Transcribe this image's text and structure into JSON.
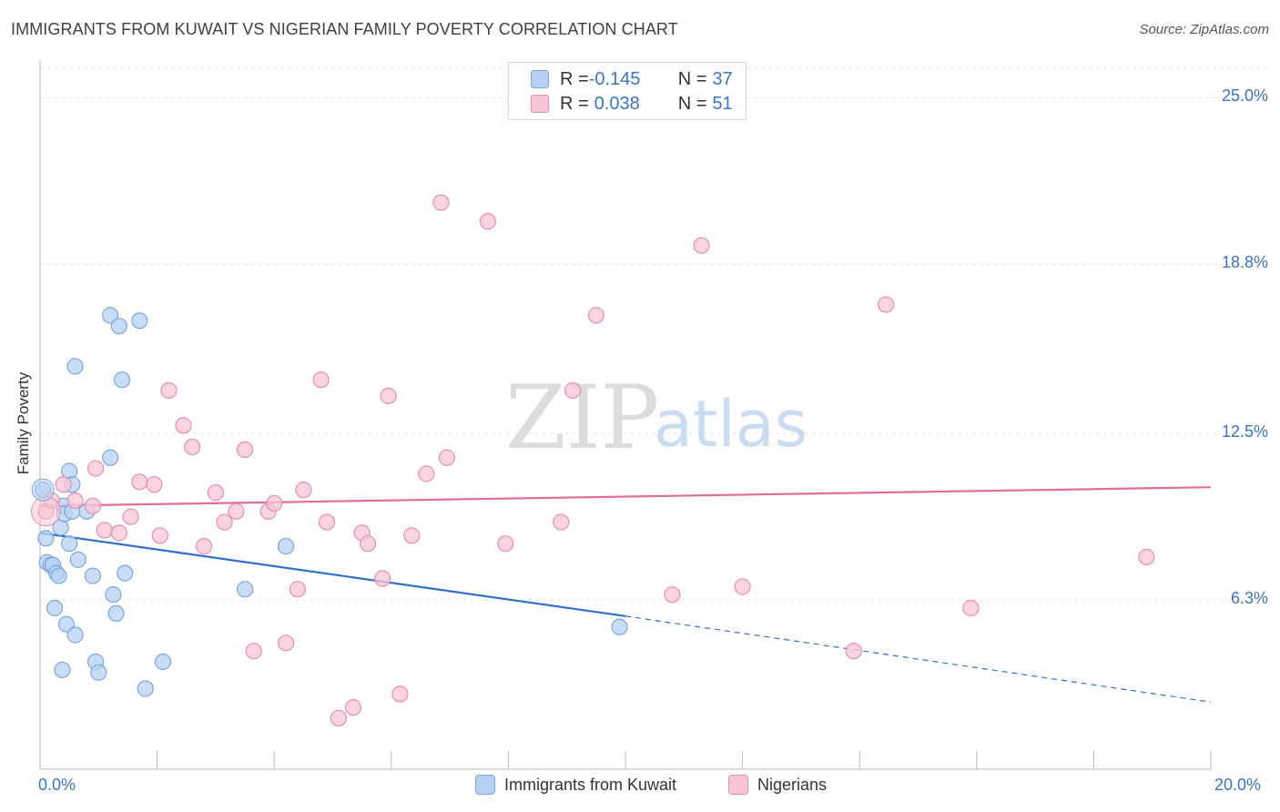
{
  "title": "IMMIGRANTS FROM KUWAIT VS NIGERIAN FAMILY POVERTY CORRELATION CHART",
  "source": "Source: ZipAtlas.com",
  "watermark": {
    "zip": "ZIP",
    "atlas": "atlas"
  },
  "legend": {
    "rows": [
      {
        "r_label": "R = ",
        "r_value": "-0.145",
        "n_label": "N = ",
        "n_value": "37",
        "color": "#b8d1f3",
        "border": "#7aa7e0"
      },
      {
        "r_label": "R = ",
        "r_value": "0.038",
        "n_label": "N = ",
        "n_value": "51",
        "color": "#f8c6d6",
        "border": "#e68fab"
      }
    ]
  },
  "chart_data": {
    "type": "scatter",
    "title": "IMMIGRANTS FROM KUWAIT VS NIGERIAN FAMILY POVERTY CORRELATION CHART",
    "xlabel": "",
    "ylabel": "Family Poverty",
    "xlim": [
      0,
      20
    ],
    "ylim": [
      0,
      26.2
    ],
    "x_tick_labels": {
      "left": "0.0%",
      "right": "20.0%"
    },
    "y_ticks": [
      {
        "value": 6.3,
        "label": "6.3%"
      },
      {
        "value": 12.5,
        "label": "12.5%"
      },
      {
        "value": 18.8,
        "label": "18.8%"
      },
      {
        "value": 25.0,
        "label": "25.0%"
      }
    ],
    "series": [
      {
        "name": "Immigrants from Kuwait",
        "color": "#7aa7e0",
        "fill": "#b8d1f3",
        "trend": {
          "x0": 0,
          "y0": 8.8,
          "x1": 10,
          "y1": 5.7,
          "dash_to_x": 20,
          "dash_to_y": 2.5,
          "color": "#2f6fd0"
        },
        "points": [
          [
            0.05,
            10.4
          ],
          [
            0.1,
            8.6
          ],
          [
            0.12,
            7.7
          ],
          [
            0.18,
            7.6
          ],
          [
            0.22,
            7.6
          ],
          [
            0.25,
            6.0
          ],
          [
            0.28,
            7.3
          ],
          [
            0.32,
            7.2
          ],
          [
            0.35,
            9.0
          ],
          [
            0.38,
            3.7
          ],
          [
            0.4,
            9.8
          ],
          [
            0.42,
            9.5
          ],
          [
            0.45,
            5.4
          ],
          [
            0.5,
            8.4
          ],
          [
            0.5,
            11.1
          ],
          [
            0.55,
            9.6
          ],
          [
            0.55,
            10.6
          ],
          [
            0.6,
            15.0
          ],
          [
            0.6,
            5.0
          ],
          [
            0.65,
            7.8
          ],
          [
            0.8,
            9.6
          ],
          [
            0.9,
            7.2
          ],
          [
            0.95,
            4.0
          ],
          [
            1.0,
            3.6
          ],
          [
            1.2,
            11.6
          ],
          [
            1.2,
            16.9
          ],
          [
            1.25,
            6.5
          ],
          [
            1.3,
            5.8
          ],
          [
            1.35,
            16.5
          ],
          [
            1.4,
            14.5
          ],
          [
            1.45,
            7.3
          ],
          [
            1.7,
            16.7
          ],
          [
            1.8,
            3.0
          ],
          [
            2.1,
            4.0
          ],
          [
            3.5,
            6.7
          ],
          [
            4.2,
            8.3
          ],
          [
            9.9,
            5.3
          ]
        ]
      },
      {
        "name": "Nigerians",
        "color": "#e68fab",
        "fill": "#f8c6d6",
        "trend": {
          "x0": 0,
          "y0": 9.8,
          "x1": 20,
          "y1": 10.5,
          "color": "#e26d98"
        },
        "points": [
          [
            0.1,
            9.6
          ],
          [
            0.2,
            10.0
          ],
          [
            0.4,
            10.6
          ],
          [
            0.6,
            10.0
          ],
          [
            0.9,
            9.8
          ],
          [
            0.95,
            11.2
          ],
          [
            1.1,
            8.9
          ],
          [
            1.35,
            8.8
          ],
          [
            1.55,
            9.4
          ],
          [
            1.7,
            10.7
          ],
          [
            1.95,
            10.6
          ],
          [
            2.05,
            8.7
          ],
          [
            2.2,
            14.1
          ],
          [
            2.45,
            12.8
          ],
          [
            2.6,
            12.0
          ],
          [
            2.8,
            8.3
          ],
          [
            3.0,
            10.3
          ],
          [
            3.15,
            9.2
          ],
          [
            3.35,
            9.6
          ],
          [
            3.5,
            11.9
          ],
          [
            3.65,
            4.4
          ],
          [
            3.9,
            9.6
          ],
          [
            4.0,
            9.9
          ],
          [
            4.2,
            4.7
          ],
          [
            4.4,
            6.7
          ],
          [
            4.5,
            10.4
          ],
          [
            4.8,
            14.5
          ],
          [
            4.9,
            9.2
          ],
          [
            5.1,
            1.9
          ],
          [
            5.35,
            2.3
          ],
          [
            5.5,
            8.8
          ],
          [
            5.6,
            8.4
          ],
          [
            5.85,
            7.1
          ],
          [
            5.95,
            13.9
          ],
          [
            6.15,
            2.8
          ],
          [
            6.35,
            8.7
          ],
          [
            6.6,
            11.0
          ],
          [
            6.85,
            21.1
          ],
          [
            6.95,
            11.6
          ],
          [
            7.65,
            20.4
          ],
          [
            7.95,
            8.4
          ],
          [
            8.9,
            9.2
          ],
          [
            9.1,
            14.1
          ],
          [
            9.5,
            16.9
          ],
          [
            10.8,
            6.5
          ],
          [
            11.3,
            19.5
          ],
          [
            12.0,
            6.8
          ],
          [
            13.9,
            4.4
          ],
          [
            14.45,
            17.3
          ],
          [
            15.9,
            6.0
          ],
          [
            18.9,
            7.9
          ]
        ]
      }
    ],
    "bottom_legend": [
      "Immigrants from Kuwait",
      "Nigerians"
    ]
  }
}
